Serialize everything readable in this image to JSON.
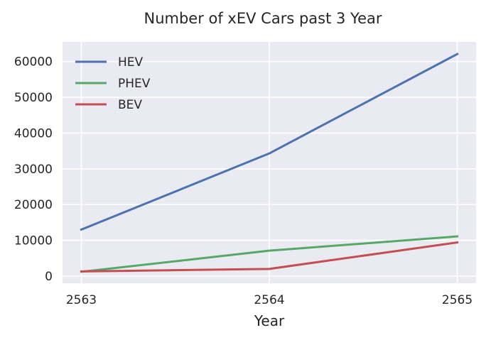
{
  "chart_data": {
    "type": "line",
    "title": "Number of xEV Cars past 3 Year",
    "xlabel": "Year",
    "ylabel": "",
    "x": [
      "2563",
      "2564",
      "2565"
    ],
    "xlim": [
      2562.9,
      2565.1
    ],
    "ylim": [
      -2000,
      65500
    ],
    "yticks": [
      "0",
      "10000",
      "20000",
      "30000",
      "40000",
      "50000",
      "60000"
    ],
    "grid": true,
    "legend_position": "top-left",
    "series": [
      {
        "name": "HEV",
        "color": "#4c72b0",
        "values": [
          13000,
          34300,
          62100
        ]
      },
      {
        "name": "PHEV",
        "color": "#55a868",
        "values": [
          1200,
          7100,
          11100
        ]
      },
      {
        "name": "BEV",
        "color": "#c44e52",
        "values": [
          1300,
          2000,
          9400
        ]
      }
    ]
  },
  "colors": {
    "plot_background": "#eaeaf2",
    "grid": "#ffffff",
    "text": "#262626"
  }
}
